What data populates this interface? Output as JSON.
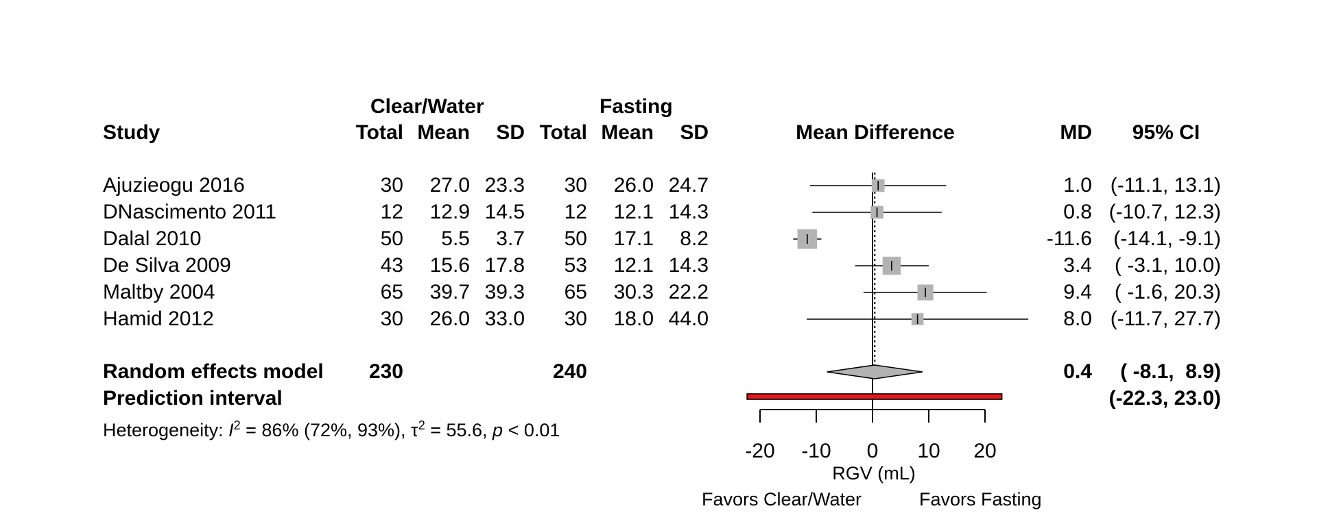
{
  "headers": {
    "group1": "Clear/Water",
    "group2": "Fasting",
    "study": "Study",
    "total1": "Total",
    "mean1": "Mean",
    "sd1": "SD",
    "total2": "Total",
    "mean2": "Mean",
    "sd2": "SD",
    "effect": "Mean Difference",
    "md": "MD",
    "ci": "95% CI"
  },
  "chart_data": {
    "type": "forest",
    "xlabel": "RGV (mL)",
    "xlim": [
      -20,
      20
    ],
    "xticks": [
      -20,
      -10,
      0,
      10,
      20
    ],
    "xtick_labels": [
      "-20",
      "-10",
      "0",
      "10",
      "20"
    ],
    "favors_left": "Favors Clear/Water",
    "favors_right": "Favors Fasting",
    "studies": [
      {
        "study": "Ajuzieogu 2016",
        "n1": "30",
        "mean1": "27.0",
        "sd1": "23.3",
        "n2": "30",
        "mean2": "26.0",
        "sd2": "24.7",
        "md": 1.0,
        "lo": -11.1,
        "hi": 13.1,
        "md_text": "1.0",
        "ci_text": "(-11.1, 13.1)",
        "weight": 0.85
      },
      {
        "study": "DNascimento 2011",
        "n1": "12",
        "mean1": "12.9",
        "sd1": "14.5",
        "n2": "12",
        "mean2": "12.1",
        "sd2": "14.3",
        "md": 0.8,
        "lo": -10.7,
        "hi": 12.3,
        "md_text": "0.8",
        "ci_text": "(-10.7, 12.3)",
        "weight": 0.85
      },
      {
        "study": "Dalal 2010",
        "n1": "50",
        "mean1": "5.5",
        "sd1": "3.7",
        "n2": "50",
        "mean2": "17.1",
        "sd2": "8.2",
        "md": -11.6,
        "lo": -14.1,
        "hi": -9.1,
        "md_text": "-11.6",
        "ci_text": "(-14.1, -9.1)",
        "weight": 1.3
      },
      {
        "study": "De Silva 2009",
        "n1": "43",
        "mean1": "15.6",
        "sd1": "17.8",
        "n2": "53",
        "mean2": "12.1",
        "sd2": "14.3",
        "md": 3.4,
        "lo": -3.1,
        "hi": 10.0,
        "md_text": "3.4",
        "ci_text": "( -3.1, 10.0)",
        "weight": 1.2
      },
      {
        "study": "Maltby 2004",
        "n1": "65",
        "mean1": "39.7",
        "sd1": "39.3",
        "n2": "65",
        "mean2": "30.3",
        "sd2": "22.2",
        "md": 9.4,
        "lo": -1.6,
        "hi": 20.3,
        "md_text": "9.4",
        "ci_text": "( -1.6, 20.3)",
        "weight": 1.05
      },
      {
        "study": "Hamid 2012",
        "n1": "30",
        "mean1": "26.0",
        "sd1": "33.0",
        "n2": "30",
        "mean2": "18.0",
        "sd2": "44.0",
        "md": 8.0,
        "lo": -11.7,
        "hi": 27.7,
        "md_text": "8.0",
        "ci_text": "(-11.7, 27.7)",
        "weight": 0.8
      }
    ],
    "random_effects": {
      "label": "Random effects model",
      "n1": "230",
      "n2": "240",
      "md": 0.4,
      "lo": -8.1,
      "hi": 8.9,
      "md_text": "0.4",
      "ci_text": "( -8.1,  8.9)"
    },
    "prediction_interval": {
      "label": "Prediction interval",
      "lo": -22.3,
      "hi": 23.0,
      "ci_text": "(-22.3, 23.0)",
      "color": "#e31a1c"
    },
    "heterogeneity": {
      "prefix": "Heterogeneity: ",
      "i2_sym": "I",
      "i2_rest": " = 86% (72%, 93%), ",
      "tau_sym": "τ",
      "tau_rest": " = 55.6, ",
      "p_sym": "p",
      "p_rest": " < 0.01",
      "sup": "2"
    },
    "colors": {
      "square": "#b3b3b3",
      "diamond": "#b3b3b3",
      "line": "#000000"
    }
  }
}
